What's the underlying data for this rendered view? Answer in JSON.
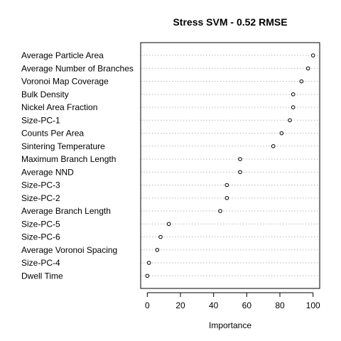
{
  "chart_data": {
    "type": "scatter",
    "title": "Stress SVM - 0.52 RMSE",
    "xlabel": "Importance",
    "ylabel": "",
    "xlim": [
      -4,
      104
    ],
    "xticks": [
      0,
      20,
      40,
      60,
      80,
      100
    ],
    "grid": "horizontal dotted guide lines",
    "categories": [
      "Average Particle Area",
      "Average Number of Branches",
      "Voronoi Map Coverage",
      "Bulk Density",
      "Nickel Area Fraction",
      "Size-PC-1",
      "Counts Per Area",
      "Sintering Temperature",
      "Maximum Branch Length",
      "Average NND",
      "Size-PC-3",
      "Size-PC-2",
      "Average Branch Length",
      "Size-PC-5",
      "Size-PC-6",
      "Average Voronoi Spacing",
      "Size-PC-4",
      "Dwell Time"
    ],
    "values": [
      100,
      97,
      93,
      88,
      88,
      86,
      81,
      76,
      56,
      56,
      48,
      48,
      44,
      13,
      8,
      6,
      1,
      0
    ]
  }
}
